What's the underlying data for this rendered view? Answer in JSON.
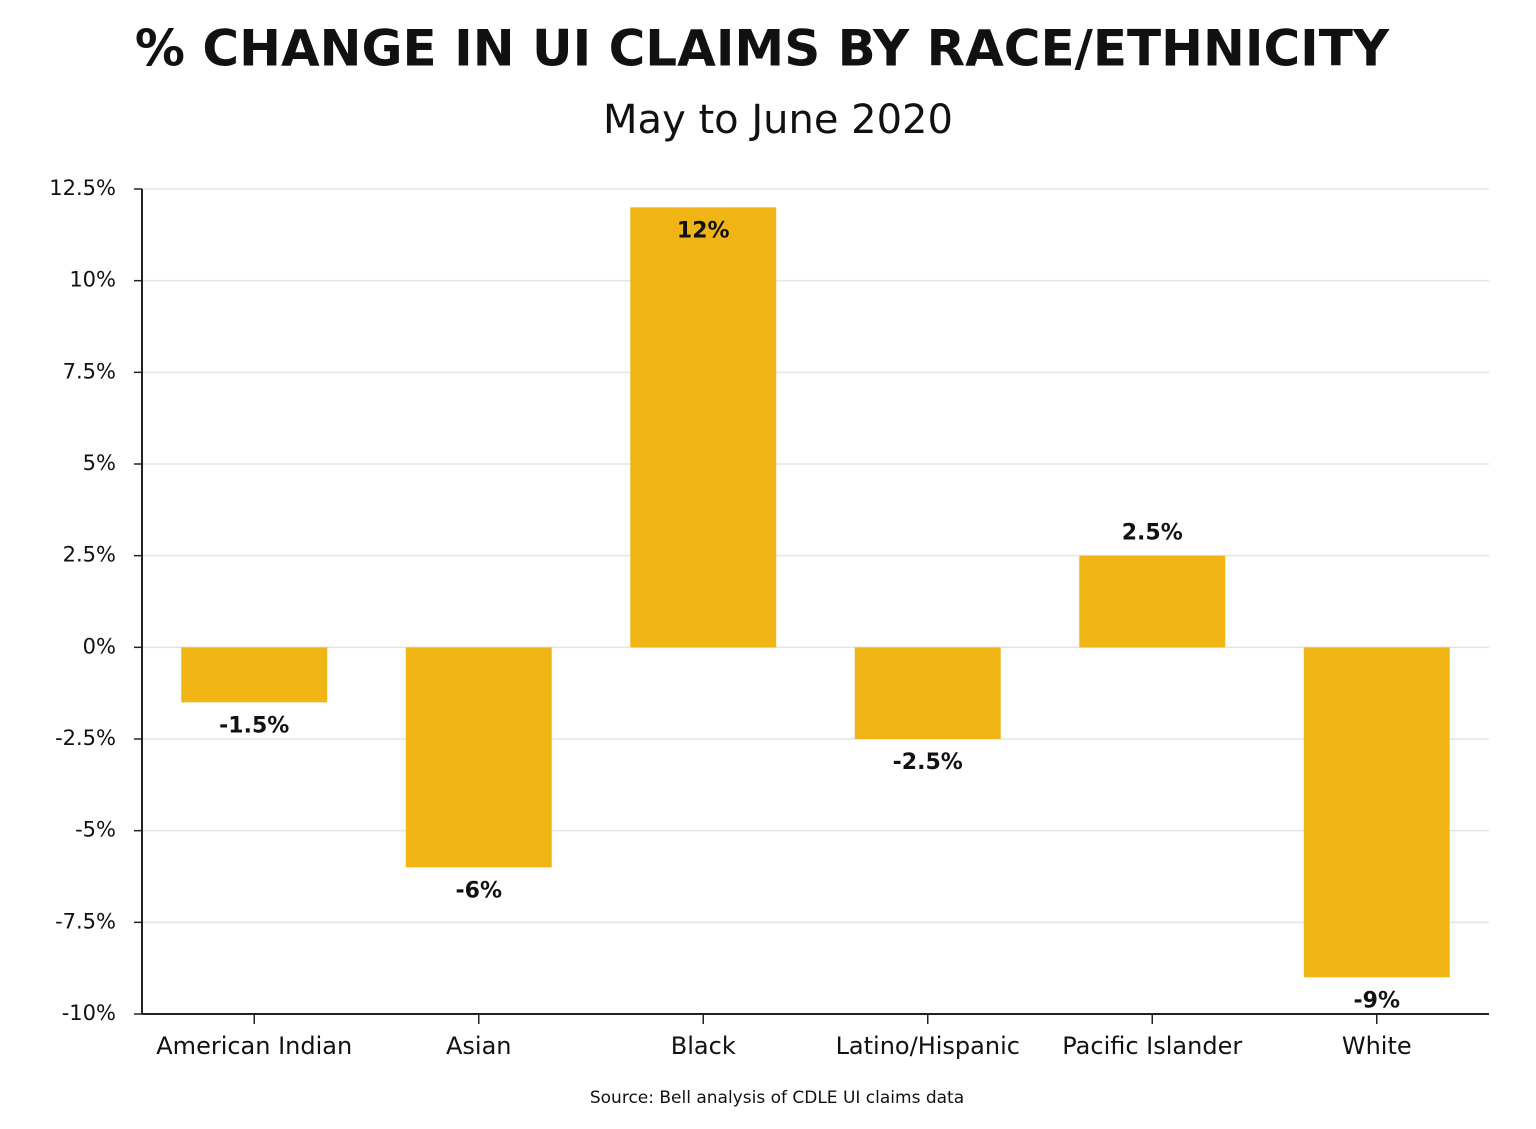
{
  "chart_data": {
    "type": "bar",
    "title": "% CHANGE IN UI CLAIMS BY RACE/ETHNICITY",
    "subtitle": "May to June 2020",
    "source": "Source: Bell analysis of CDLE UI claims data",
    "categories": [
      "American Indian",
      "Asian",
      "Black",
      "Latino/Hispanic",
      "Pacific Islander",
      "White"
    ],
    "values": [
      -1.5,
      -6,
      12,
      -2.5,
      2.5,
      -9
    ],
    "value_labels": [
      "-1.5%",
      "-6%",
      "12%",
      "-2.5%",
      "2.5%",
      "-9%"
    ],
    "color": "#f0b514",
    "ylim": [
      -10,
      12.5
    ],
    "yticks": [
      {
        "value": 12.5,
        "label": "12.5%"
      },
      {
        "value": 10,
        "label": "10%"
      },
      {
        "value": 7.5,
        "label": "7.5%"
      },
      {
        "value": 5,
        "label": "5%"
      },
      {
        "value": 2.5,
        "label": "2.5%"
      },
      {
        "value": 0,
        "label": "0%"
      },
      {
        "value": -2.5,
        "label": "-2.5%"
      },
      {
        "value": -5,
        "label": "-5%"
      },
      {
        "value": -7.5,
        "label": "-7.5%"
      },
      {
        "value": -10,
        "label": "-10%"
      }
    ],
    "grid": true
  }
}
